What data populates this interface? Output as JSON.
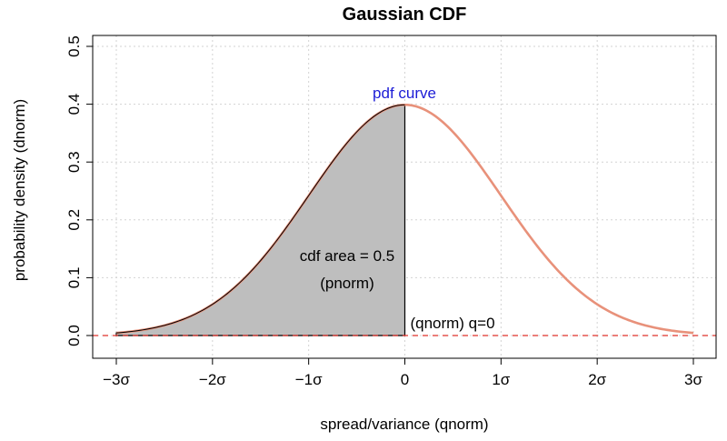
{
  "chart_data": {
    "type": "area",
    "title": "Gaussian CDF",
    "xlabel": "spread/variance (qnorm)",
    "ylabel": "probability density (dnorm)",
    "xlim": [
      -3,
      3
    ],
    "ylim": [
      0,
      0.5
    ],
    "x_ticks": [
      {
        "value": -3,
        "label": "−3σ"
      },
      {
        "value": -2,
        "label": "−2σ"
      },
      {
        "value": -1,
        "label": "−1σ"
      },
      {
        "value": 0,
        "label": "0"
      },
      {
        "value": 1,
        "label": "1σ"
      },
      {
        "value": 2,
        "label": "2σ"
      },
      {
        "value": 3,
        "label": "3σ"
      }
    ],
    "y_ticks": [
      {
        "value": 0.0,
        "label": "0.0"
      },
      {
        "value": 0.1,
        "label": "0.1"
      },
      {
        "value": 0.2,
        "label": "0.2"
      },
      {
        "value": 0.3,
        "label": "0.3"
      },
      {
        "value": 0.4,
        "label": "0.4"
      },
      {
        "value": 0.5,
        "label": "0.5"
      }
    ],
    "grid": true,
    "pdf_curve": {
      "x": [
        -3.0,
        -2.75,
        -2.5,
        -2.25,
        -2.0,
        -1.75,
        -1.5,
        -1.25,
        -1.0,
        -0.75,
        -0.5,
        -0.25,
        0.0,
        0.25,
        0.5,
        0.75,
        1.0,
        1.25,
        1.5,
        1.75,
        2.0,
        2.25,
        2.5,
        2.75,
        3.0
      ],
      "y": [
        0.0044,
        0.0091,
        0.0175,
        0.0317,
        0.054,
        0.0863,
        0.1295,
        0.1826,
        0.242,
        0.3011,
        0.3521,
        0.3867,
        0.3989,
        0.3867,
        0.3521,
        0.3011,
        0.242,
        0.1826,
        0.1295,
        0.0863,
        0.054,
        0.0317,
        0.0175,
        0.0091,
        0.0044
      ],
      "color": "#e8917a"
    },
    "shaded_region": {
      "from": -3,
      "to": 0,
      "color": "#bebebe"
    },
    "baseline": {
      "y": 0,
      "color": "#e0312a"
    },
    "annotations": {
      "pdf_label": "pdf curve",
      "cdf_area": "cdf area = 0.5",
      "pnorm": "(pnorm)",
      "qnorm": "(qnorm) q=0"
    }
  }
}
